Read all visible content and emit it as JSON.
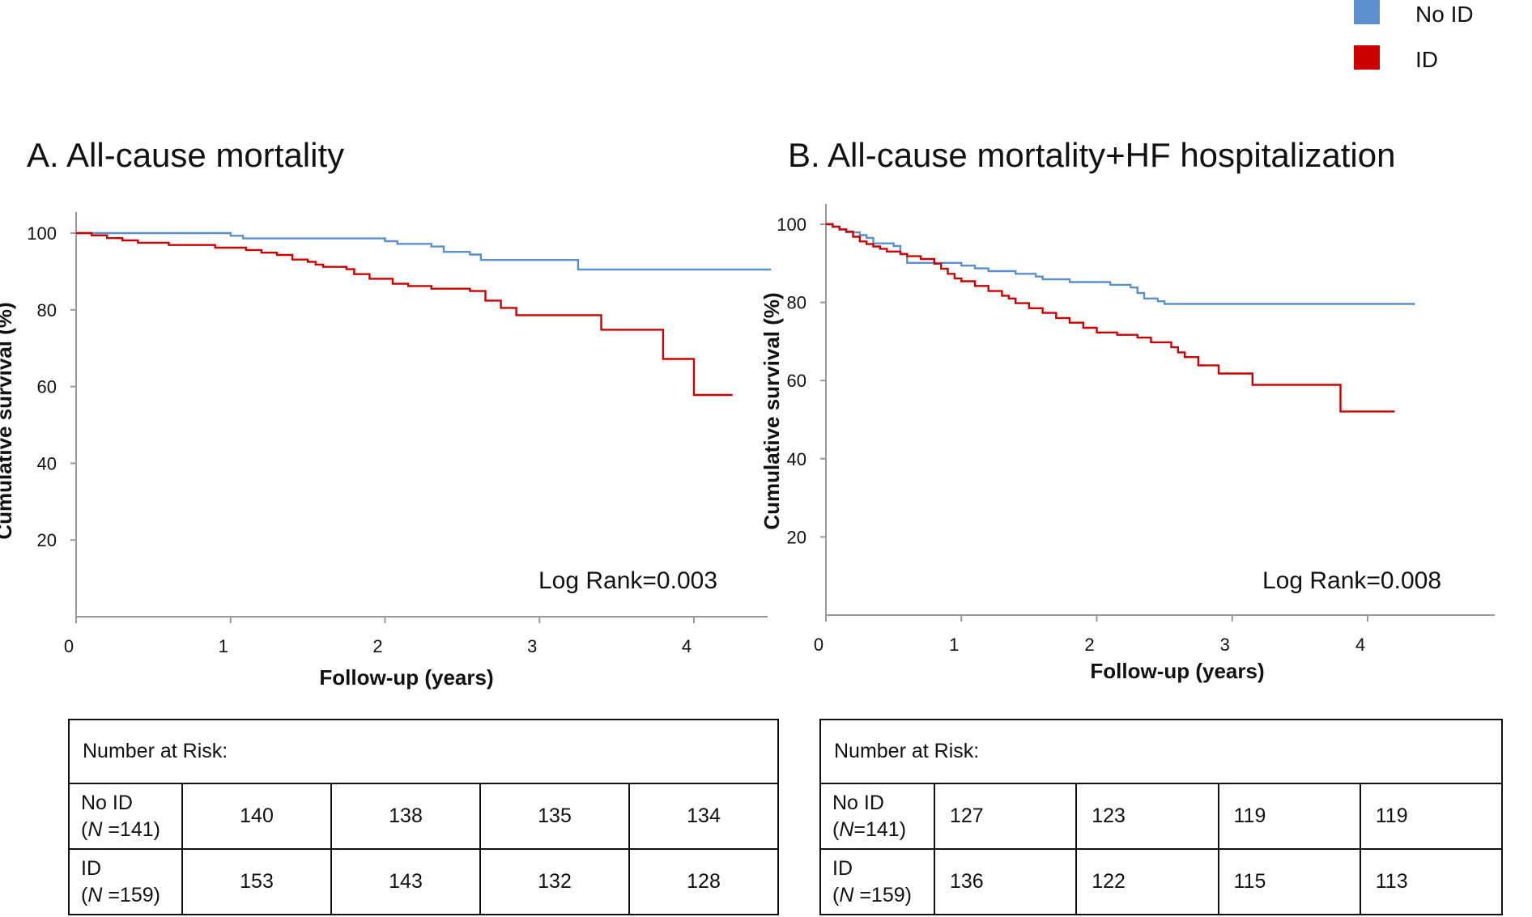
{
  "legend": {
    "items": [
      {
        "label": "No ID",
        "color": "#5b8fcf"
      },
      {
        "label": "ID",
        "color": "#cc0000"
      }
    ]
  },
  "chart_data": [
    {
      "type": "line",
      "panel": "A",
      "title": "A. All-cause mortality",
      "xlabel": "Follow-up (years)",
      "ylabel": "Cumulative survival (%)",
      "xlim": [
        0,
        4.5
      ],
      "ylim": [
        0,
        105
      ],
      "xticks": [
        "0",
        "1",
        "2",
        "3",
        "4"
      ],
      "yticks": [
        "20",
        "40",
        "60",
        "80",
        "100"
      ],
      "grid": false,
      "annotation": "Log Rank=0.003",
      "series": [
        {
          "name": "No ID",
          "color": "#5b8fcf",
          "x": [
            0,
            1.0,
            1.08,
            1.92,
            2.0,
            2.08,
            2.3,
            2.38,
            2.55,
            2.62,
            3.25,
            4.5
          ],
          "y": [
            100,
            99.3,
            98.6,
            98.6,
            97.9,
            97.2,
            96.5,
            95.1,
            94.4,
            93.0,
            90.5,
            90.5
          ]
        },
        {
          "name": "ID",
          "color": "#cc0000",
          "x": [
            0,
            0.1,
            0.2,
            0.3,
            0.4,
            0.6,
            0.9,
            1.1,
            1.2,
            1.3,
            1.4,
            1.5,
            1.55,
            1.6,
            1.75,
            1.8,
            1.9,
            2.05,
            2.15,
            2.3,
            2.55,
            2.65,
            2.75,
            2.85,
            3.1,
            3.4,
            3.8,
            4.0,
            4.25
          ],
          "y": [
            100,
            99.4,
            98.7,
            98.1,
            97.5,
            96.9,
            96.2,
            95.6,
            94.9,
            94.3,
            93.1,
            92.5,
            91.8,
            91.2,
            90.6,
            89.3,
            88.1,
            86.8,
            86.2,
            85.5,
            84.9,
            82.4,
            80.5,
            78.6,
            78.6,
            74.8,
            67.2,
            57.8,
            57.8
          ]
        }
      ]
    },
    {
      "type": "line",
      "panel": "B",
      "title": "B. All-cause mortality+HF hospitalization",
      "xlabel": "Follow-up (years)",
      "ylabel": "Cumulative survival (%)",
      "xlim": [
        0,
        4.9
      ],
      "ylim": [
        0,
        105
      ],
      "xticks": [
        "0",
        "1",
        "2",
        "3",
        "4"
      ],
      "yticks": [
        "20",
        "40",
        "60",
        "80",
        "100"
      ],
      "grid": false,
      "annotation": "Log Rank=0.008",
      "series": [
        {
          "name": "No ID",
          "color": "#5b8fcf",
          "x": [
            0,
            0.05,
            0.1,
            0.15,
            0.25,
            0.3,
            0.35,
            0.5,
            0.55,
            0.6,
            1.0,
            1.1,
            1.2,
            1.4,
            1.55,
            1.6,
            1.8,
            2.1,
            2.25,
            2.3,
            2.35,
            2.45,
            2.5,
            4.35
          ],
          "y": [
            100,
            99.3,
            98.6,
            97.9,
            97.2,
            96.5,
            95.1,
            94.4,
            92.3,
            90.1,
            89.4,
            88.7,
            88.0,
            87.3,
            86.6,
            85.9,
            85.2,
            84.5,
            83.8,
            82.4,
            81.0,
            80.3,
            79.6,
            79.6
          ]
        },
        {
          "name": "ID",
          "color": "#cc0000",
          "x": [
            0,
            0.05,
            0.1,
            0.15,
            0.2,
            0.25,
            0.3,
            0.35,
            0.4,
            0.45,
            0.55,
            0.6,
            0.7,
            0.8,
            0.85,
            0.9,
            0.95,
            1.0,
            1.1,
            1.2,
            1.3,
            1.35,
            1.4,
            1.5,
            1.6,
            1.7,
            1.8,
            1.9,
            2.0,
            2.15,
            2.3,
            2.4,
            2.55,
            2.6,
            2.65,
            2.75,
            2.9,
            3.15,
            3.8,
            4.2
          ],
          "y": [
            100,
            99.4,
            98.7,
            98.1,
            96.8,
            95.6,
            94.9,
            94.3,
            93.7,
            93.0,
            92.4,
            91.8,
            91.1,
            89.9,
            88.6,
            87.3,
            86.1,
            85.4,
            84.2,
            82.9,
            81.7,
            81.0,
            79.8,
            78.5,
            77.3,
            76.0,
            74.8,
            73.5,
            72.3,
            71.7,
            71.0,
            69.8,
            68.5,
            67.2,
            66.0,
            63.9,
            61.8,
            58.9,
            52.1,
            52.1
          ]
        }
      ]
    }
  ],
  "tables": [
    {
      "header": "Number at Risk:",
      "rows": [
        {
          "line1": "No ID",
          "n_prefix": "(",
          "n_symbol": "N",
          "n_suffix": " =141)",
          "values": [
            "140",
            "138",
            "135",
            "134"
          ]
        },
        {
          "line1": "ID",
          "n_prefix": "(",
          "n_symbol": "N",
          "n_suffix": " =159)",
          "values": [
            "153",
            "143",
            "132",
            "128"
          ]
        }
      ]
    },
    {
      "header": "Number at Risk:",
      "rows": [
        {
          "line1": "No ID",
          "n_prefix": "(",
          "n_symbol": "N",
          "n_suffix": "=141)",
          "values": [
            "127",
            "123",
            "119",
            "119"
          ]
        },
        {
          "line1": "ID",
          "n_prefix": "(",
          "n_symbol": "N",
          "n_suffix": " =159)",
          "values": [
            "136",
            "122",
            "115",
            "113"
          ]
        }
      ]
    }
  ]
}
